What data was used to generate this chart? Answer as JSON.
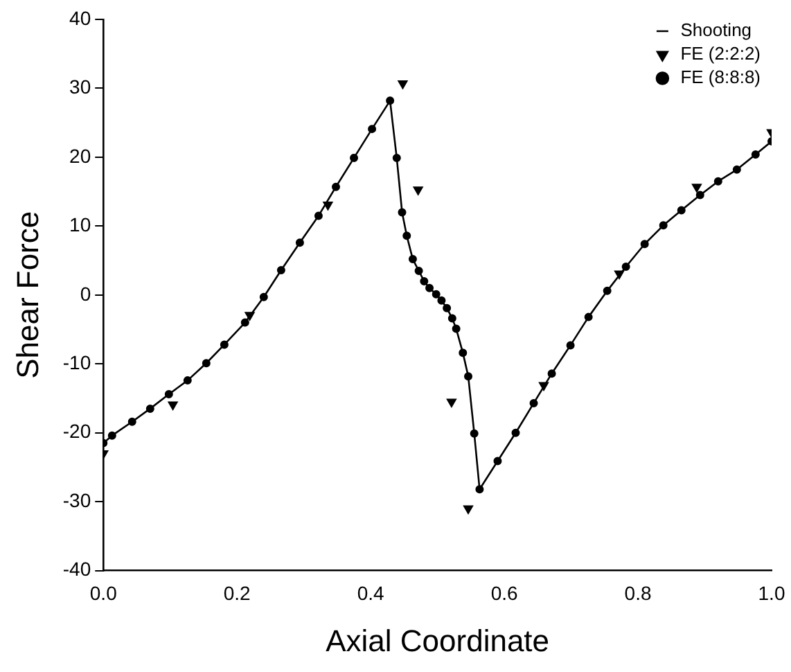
{
  "chart_data": {
    "type": "scatter",
    "xlabel": "Axial Coordinate",
    "ylabel": "Shear Force",
    "xlim": [
      0,
      1
    ],
    "ylim": [
      -40,
      40
    ],
    "xticks": [
      {
        "value": 0,
        "label": "0.0"
      },
      0.2,
      0.4,
      0.6,
      0.8,
      {
        "value": 1,
        "label": "1.0"
      }
    ],
    "yticks": [
      -40,
      -30,
      -20,
      -10,
      0,
      10,
      20,
      30,
      40
    ],
    "grid": false,
    "legend": "top right",
    "series": [
      {
        "name": "Shooting",
        "type": "line",
        "color": "#000000",
        "marker": "none",
        "line_style": "solid",
        "x": [
          0,
          0.013,
          0.043,
          0.07,
          0.098,
          0.126,
          0.154,
          0.181,
          0.212,
          0.24,
          0.266,
          0.294,
          0.322,
          0.348,
          0.375,
          0.402,
          0.429,
          0.439,
          0.447,
          0.454,
          0.463,
          0.472,
          0.48,
          0.488,
          0.498,
          0.506,
          0.514,
          0.522,
          0.528,
          0.538,
          0.546,
          0.555,
          0.563,
          0.59,
          0.617,
          0.644,
          0.671,
          0.699,
          0.726,
          0.754,
          0.782,
          0.81,
          0.838,
          0.865,
          0.893,
          0.92,
          0.948,
          0.976,
          1.0
        ],
        "values": [
          -21.5,
          -20.4,
          -18.4,
          -16.5,
          -14.4,
          -12.4,
          -9.9,
          -7.2,
          -4.0,
          -0.3,
          3.6,
          7.6,
          11.5,
          15.7,
          19.9,
          24.1,
          28.2,
          19.9,
          12.0,
          8.6,
          5.2,
          3.5,
          2.0,
          1.0,
          0.1,
          -0.8,
          -1.9,
          -3.4,
          -4.9,
          -8.4,
          -11.8,
          -20.1,
          -28.2,
          -24.1,
          -20.0,
          -15.7,
          -11.4,
          -7.3,
          -3.2,
          0.6,
          4.1,
          7.4,
          10.1,
          12.3,
          14.5,
          16.5,
          18.2,
          20.4,
          22.3
        ]
      },
      {
        "name": "FE (2:2:2)",
        "type": "scatter",
        "color": "#000000",
        "marker": "triangle",
        "x": [
          0,
          0.104,
          0.219,
          0.336,
          0.448,
          0.471,
          0.521,
          0.546,
          0.659,
          0.772,
          0.888,
          1.0
        ],
        "values": [
          -23.0,
          -15.9,
          -2.9,
          13.1,
          30.7,
          15.3,
          -15.5,
          -31.0,
          -13.1,
          3.1,
          15.7,
          23.6
        ]
      },
      {
        "name": "FE (8:8:8)",
        "type": "scatter",
        "color": "#000000",
        "marker": "circle",
        "x": [
          0,
          0.013,
          0.043,
          0.07,
          0.098,
          0.126,
          0.154,
          0.181,
          0.212,
          0.24,
          0.266,
          0.294,
          0.322,
          0.348,
          0.375,
          0.402,
          0.429,
          0.439,
          0.447,
          0.454,
          0.463,
          0.472,
          0.48,
          0.488,
          0.498,
          0.506,
          0.514,
          0.522,
          0.528,
          0.538,
          0.546,
          0.555,
          0.563,
          0.59,
          0.617,
          0.644,
          0.671,
          0.699,
          0.726,
          0.754,
          0.782,
          0.81,
          0.838,
          0.865,
          0.893,
          0.92,
          0.948,
          0.976,
          1.0
        ],
        "values": [
          -21.5,
          -20.4,
          -18.4,
          -16.5,
          -14.4,
          -12.4,
          -9.9,
          -7.2,
          -4.0,
          -0.3,
          3.6,
          7.6,
          11.5,
          15.7,
          19.9,
          24.1,
          28.2,
          19.9,
          12.0,
          8.6,
          5.2,
          3.5,
          2.0,
          1.0,
          0.1,
          -0.8,
          -1.9,
          -3.4,
          -4.9,
          -8.4,
          -11.8,
          -20.1,
          -28.2,
          -24.1,
          -20.0,
          -15.7,
          -11.4,
          -7.3,
          -3.2,
          0.6,
          4.1,
          7.4,
          10.1,
          12.3,
          14.5,
          16.5,
          18.2,
          20.4,
          22.3
        ]
      }
    ]
  }
}
